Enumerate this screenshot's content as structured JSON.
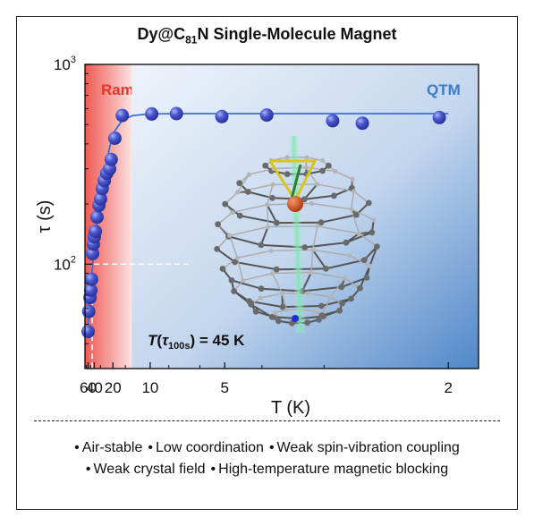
{
  "figure": {
    "title_prefix": "Dy@C",
    "title_sub": "81",
    "title_suffix": "N Single-Molecule Magnet",
    "features_line1": [
      "Air-stable",
      "Low coordination",
      "Weak spin-vibration coupling"
    ],
    "features_line2": [
      "Weak crystal field",
      "High-temperature magnetic blocking"
    ],
    "bullet": "•"
  },
  "chart_data": {
    "type": "scatter",
    "x_scale": "reciprocal",
    "y_scale": "log",
    "xlabel": "T (K)",
    "ylabel": "τ (s)",
    "x_ticks": [
      60,
      40,
      20,
      10,
      5,
      2
    ],
    "y_ticks": [
      {
        "value": 100,
        "base": "10",
        "exp": "2"
      },
      {
        "value": 1000,
        "base": "10",
        "exp": "3"
      }
    ],
    "x_range_K": [
      80,
      1.85
    ],
    "y_range_s": [
      30,
      1000
    ],
    "regions": [
      {
        "label": "Raman + Direct",
        "color": "#e8332a",
        "from_K": 80,
        "to_K": 13.3
      },
      {
        "label": "QTM",
        "color": "#3a7cc8",
        "from_K": 13.3,
        "to_K": 1.85
      }
    ],
    "annotation": {
      "T": "T",
      "tau": "τ",
      "tau_sub": "100s",
      "value": " = 45 K",
      "x_K": 45,
      "y_s": 100
    },
    "series": [
      {
        "marker_color": "#3f4fc4",
        "x": [
          60,
          57,
          52,
          49,
          47,
          44,
          42,
          40,
          38,
          35,
          32,
          30,
          28,
          26,
          24,
          22,
          21,
          19,
          16,
          9.8,
          7.4,
          5.1,
          3.9,
          2.9,
          2.6,
          2.05
        ],
        "y": [
          46,
          58,
          68,
          74,
          84,
          113,
          126,
          137,
          146,
          172,
          197,
          212,
          239,
          262,
          285,
          300,
          334,
          427,
          555,
          565,
          567,
          548,
          558,
          522,
          508,
          542
        ]
      }
    ],
    "fit_curve": {
      "color": "#3a6fd0",
      "x": [
        60,
        50,
        44,
        40,
        35,
        30,
        26,
        22,
        19,
        16,
        13,
        10,
        7,
        5,
        3.5,
        2
      ],
      "y": [
        50,
        75,
        100,
        125,
        165,
        215,
        285,
        385,
        465,
        525,
        555,
        565,
        567,
        567,
        567,
        567
      ]
    },
    "legend": "none",
    "grid": false
  }
}
